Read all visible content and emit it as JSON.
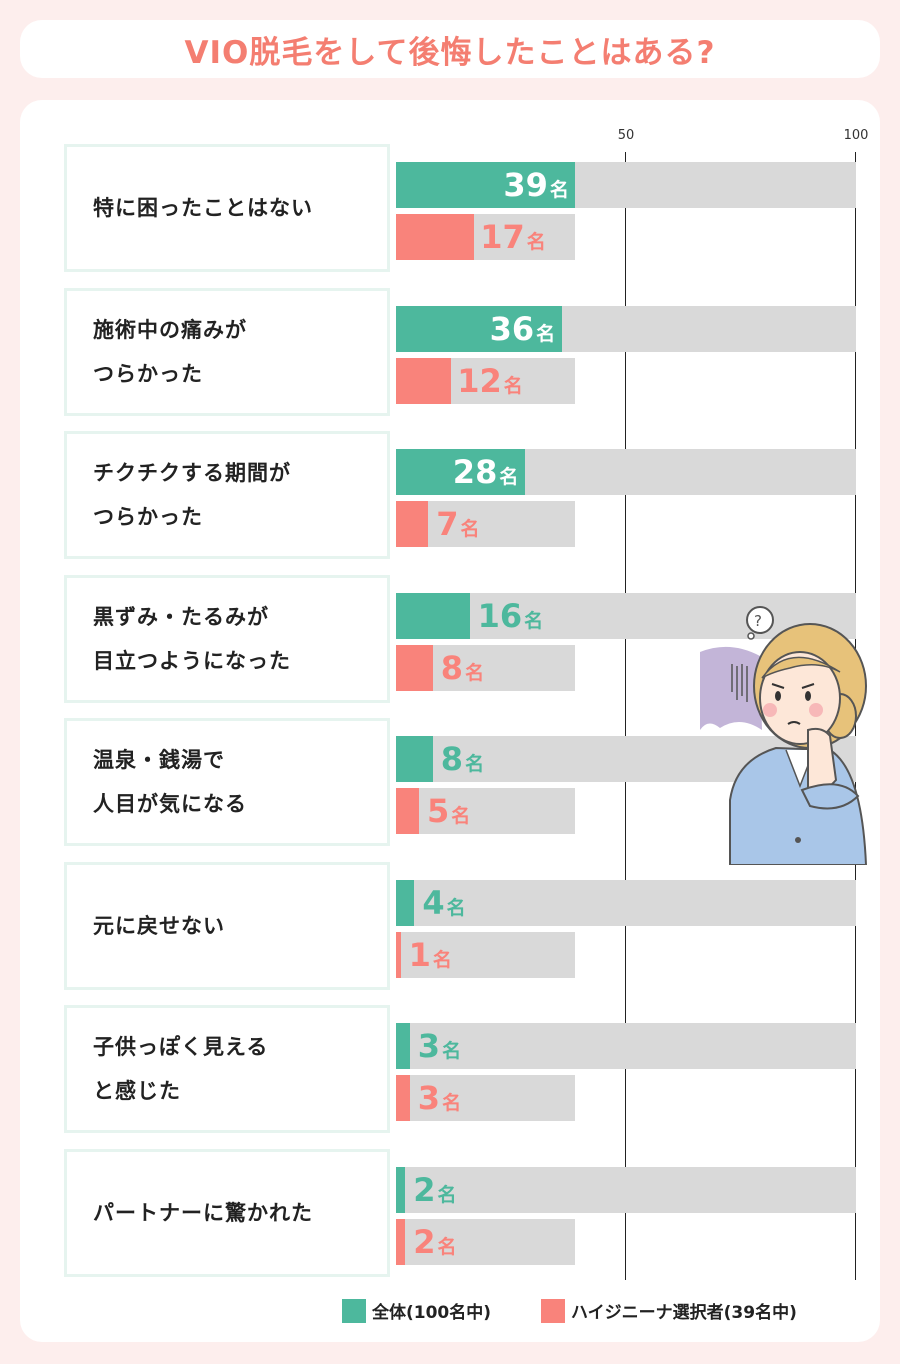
{
  "title": "VIO脱毛をして後悔したことはある?",
  "colors": {
    "all": "#4db89d",
    "high": "#f9837b",
    "track": "#d9d9d9"
  },
  "chart_data": {
    "type": "bar",
    "orientation": "horizontal",
    "xlim": [
      0,
      100
    ],
    "ticks": [
      "50",
      "100"
    ],
    "unit": "名",
    "categories": [
      "特に困ったことはない",
      "施術中の痛みが\nつらかった",
      "チクチクする期間が\nつらかった",
      "黒ずみ・たるみが\n目立つようになった",
      "温泉・銭湯で\n人目が気になる",
      "元に戻せない",
      "子供っぽく見える\nと感じた",
      "パートナーに驚かれた"
    ],
    "series": [
      {
        "name": "全体(100名中)",
        "total": 100,
        "values": [
          39,
          36,
          28,
          16,
          8,
          4,
          3,
          2
        ]
      },
      {
        "name": "ハイジニーナ選択者(39名中)",
        "total": 39,
        "values": [
          17,
          12,
          7,
          8,
          5,
          1,
          3,
          2
        ]
      }
    ]
  }
}
